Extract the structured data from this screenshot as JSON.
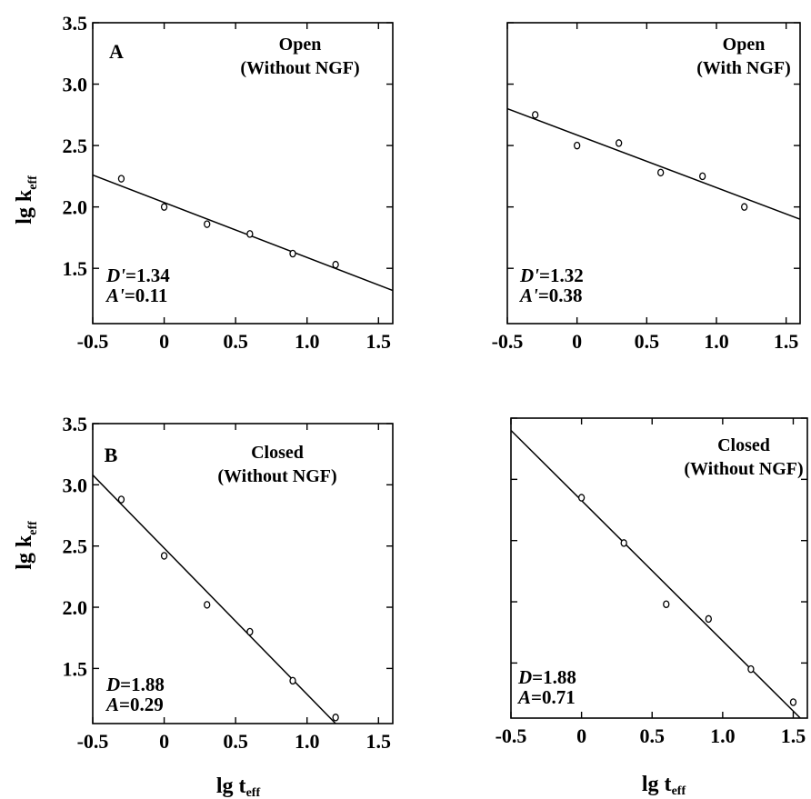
{
  "figure": {
    "ylabel_main": "lg k",
    "ylabel_sub": "eff",
    "xlabel_main": "lg t",
    "xlabel_sub": "eff"
  },
  "chart_data": [
    {
      "id": "A-left",
      "type": "scatter",
      "panel_label": "A",
      "title_lines": [
        "Open",
        "(Without NGF)"
      ],
      "annotations": [
        {
          "symbol": "D'",
          "value": "=1.34"
        },
        {
          "symbol": "A'",
          "value": "=0.11"
        }
      ],
      "xlim": [
        -0.5,
        1.6
      ],
      "ylim": [
        1.05,
        3.5
      ],
      "x_ticks": [
        -0.5,
        0,
        0.5,
        1.0,
        1.5
      ],
      "x_tick_labels": [
        "-0.5",
        "0",
        "0.5",
        "1.0",
        "1.5"
      ],
      "y_ticks": [
        1.5,
        2.0,
        2.5,
        3.0,
        3.5
      ],
      "y_tick_labels": [
        "1.5",
        "2.0",
        "2.5",
        "3.0",
        "3.5"
      ],
      "points": {
        "x": [
          -0.3,
          0.0,
          0.3,
          0.6,
          0.9,
          1.2
        ],
        "y": [
          2.23,
          2.0,
          1.86,
          1.78,
          1.62,
          1.53
        ]
      },
      "fit": {
        "x": [
          -0.5,
          1.6
        ],
        "y": [
          2.26,
          1.32
        ]
      }
    },
    {
      "id": "A-right",
      "type": "scatter",
      "panel_label": "",
      "title_lines": [
        "Open",
        "(With NGF)"
      ],
      "annotations": [
        {
          "symbol": "D'",
          "value": "=1.32"
        },
        {
          "symbol": "A'",
          "value": "=0.38"
        }
      ],
      "xlim": [
        -0.5,
        1.6
      ],
      "ylim": [
        1.05,
        3.5
      ],
      "x_ticks": [
        -0.5,
        0,
        0.5,
        1.0,
        1.5
      ],
      "x_tick_labels": [
        "-0.5",
        "0",
        "0.5",
        "1.0",
        "1.5"
      ],
      "y_ticks": [
        1.5,
        2.0,
        2.5,
        3.0,
        3.5
      ],
      "y_tick_labels": [],
      "points": {
        "x": [
          -0.3,
          0.0,
          0.3,
          0.6,
          0.9,
          1.2
        ],
        "y": [
          2.75,
          2.5,
          2.52,
          2.28,
          2.25,
          2.0
        ]
      },
      "fit": {
        "x": [
          -0.5,
          1.6
        ],
        "y": [
          2.8,
          1.9
        ]
      }
    },
    {
      "id": "B-left",
      "type": "scatter",
      "panel_label": "B",
      "title_lines": [
        "Closed",
        "(Without NGF)"
      ],
      "annotations": [
        {
          "symbol": "D",
          "value": "=1.88"
        },
        {
          "symbol": "A",
          "value": "=0.29"
        }
      ],
      "xlim": [
        -0.5,
        1.6
      ],
      "ylim": [
        1.05,
        3.5
      ],
      "x_ticks": [
        -0.5,
        0,
        0.5,
        1.0,
        1.5
      ],
      "x_tick_labels": [
        "-0.5",
        "0",
        "0.5",
        "1.0",
        "1.5"
      ],
      "y_ticks": [
        1.5,
        2.0,
        2.5,
        3.0,
        3.5
      ],
      "y_tick_labels": [
        "1.5",
        "2.0",
        "2.5",
        "3.0",
        "3.5"
      ],
      "points": {
        "x": [
          -0.3,
          0.0,
          0.3,
          0.6,
          0.9,
          1.2
        ],
        "y": [
          2.88,
          2.42,
          2.02,
          1.8,
          1.4,
          1.1
        ]
      },
      "fit": {
        "x": [
          -0.5,
          1.2
        ],
        "y": [
          3.08,
          1.05
        ]
      }
    },
    {
      "id": "B-right",
      "type": "scatter",
      "panel_label": "",
      "title_lines": [
        "Closed",
        "(Without NGF)"
      ],
      "annotations": [
        {
          "symbol": "D",
          "value": "=1.88"
        },
        {
          "symbol": "A",
          "value": "=0.71"
        }
      ],
      "xlim": [
        -0.5,
        1.6
      ],
      "ylim": [
        1.05,
        3.5
      ],
      "x_ticks": [
        -0.5,
        0,
        0.5,
        1.0,
        1.5
      ],
      "x_tick_labels": [
        "-0.5",
        "0",
        "0.5",
        "1.0",
        "1.5"
      ],
      "y_ticks": [
        1.5,
        2.0,
        2.5,
        3.0,
        3.5
      ],
      "y_tick_labels": [],
      "points": {
        "x": [
          0.0,
          0.3,
          0.6,
          0.9,
          1.2,
          1.5
        ],
        "y": [
          2.85,
          2.48,
          1.98,
          1.86,
          1.45,
          1.18
        ]
      },
      "fit": {
        "x": [
          -0.5,
          1.55
        ],
        "y": [
          3.4,
          1.05
        ]
      }
    }
  ]
}
